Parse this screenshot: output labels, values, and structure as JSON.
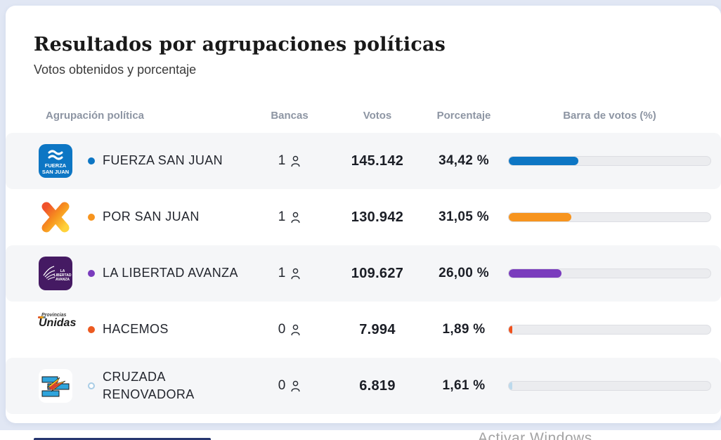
{
  "page": {
    "title": "Resultados por agrupaciones políticas",
    "subtitle": "Votos obtenidos y porcentaje",
    "watermark": "Activar Windows"
  },
  "table": {
    "headers": {
      "party": "Agrupación política",
      "seats": "Bancas",
      "votes": "Votos",
      "percentage": "Porcentaje",
      "bar": "Barra de votos (%)"
    },
    "track_color": "#ebecef",
    "rows": [
      {
        "party": "FUERZA SAN JUAN",
        "seats": "1",
        "votes": "145.142",
        "percentage": "34,42 %",
        "percent_value": 34.42,
        "bar_color": "#0d76c4",
        "bullet_color": "#0d76c4",
        "bullet_hollow": false,
        "logo_text": {
          "line1": "FUERZA",
          "line2": "SAN JUAN"
        }
      },
      {
        "party": "POR SAN JUAN",
        "seats": "1",
        "votes": "130.942",
        "percentage": "31,05 %",
        "percent_value": 31.05,
        "bar_color": "#f7941e",
        "bullet_color": "#f7941e",
        "bullet_hollow": false
      },
      {
        "party": "LA LIBERTAD AVANZA",
        "seats": "1",
        "votes": "109.627",
        "percentage": "26,00 %",
        "percent_value": 26.0,
        "bar_color": "#7a3cbd",
        "bullet_color": "#7a3cbd",
        "bullet_hollow": false,
        "logo_text": {
          "line1": "LA",
          "line2": "LIBERTAD",
          "line3": "AVANZA"
        }
      },
      {
        "party": "HACEMOS",
        "seats": "0",
        "votes": "7.994",
        "percentage": "1,89 %",
        "percent_value": 1.89,
        "bar_color": "#f0511c",
        "bullet_color": "#ec5a21",
        "bullet_hollow": false,
        "logo_text": {
          "line1": "Provincias",
          "line2": "Unidas"
        }
      },
      {
        "party": "CRUZADA RENOVADORA",
        "seats": "0",
        "votes": "6.819",
        "percentage": "1,61 %",
        "percent_value": 1.61,
        "bar_color": "#bcd9ec",
        "bullet_color": "#a9cde6",
        "bullet_hollow": true
      }
    ]
  }
}
